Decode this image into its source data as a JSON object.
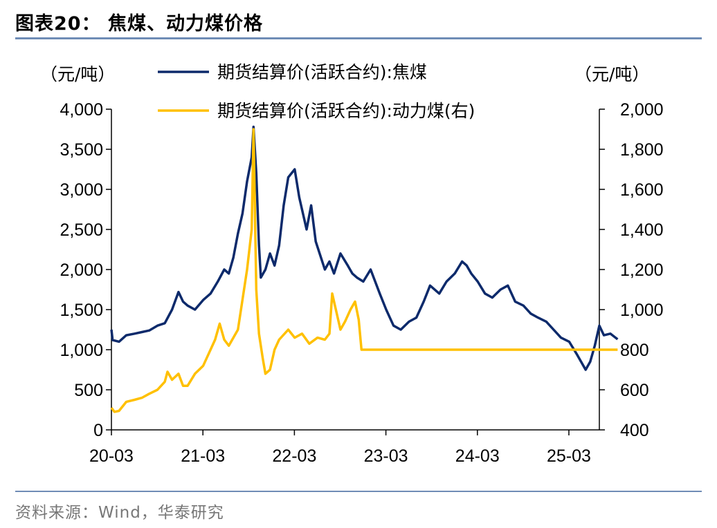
{
  "header": {
    "title": "图表20：  焦煤、动力煤价格"
  },
  "footer": {
    "source": "资料来源：Wind，华泰研究"
  },
  "axes": {
    "left_unit": "（元/吨）",
    "right_unit": "（元/吨）"
  },
  "colors": {
    "coking": "#0d2a6b",
    "thermal": "#ffc000",
    "axis": "#000000",
    "rule": "#6f8cb6"
  },
  "chart_data": {
    "type": "line",
    "title": "焦煤、动力煤价格",
    "x_domain": [
      2020.167,
      2025.5
    ],
    "x_ticks": [
      {
        "t": 2020.167,
        "label": "20-03"
      },
      {
        "t": 2021.167,
        "label": "21-03"
      },
      {
        "t": 2022.167,
        "label": "22-03"
      },
      {
        "t": 2023.167,
        "label": "23-03"
      },
      {
        "t": 2024.167,
        "label": "24-03"
      },
      {
        "t": 2025.167,
        "label": "25-03"
      }
    ],
    "y_left": {
      "min": 0,
      "max": 4000,
      "ticks": [
        0,
        500,
        1000,
        1500,
        2000,
        2500,
        3000,
        3500,
        4000
      ],
      "tick_labels": [
        "0",
        "500",
        "1,000",
        "1,500",
        "2,000",
        "2,500",
        "3,000",
        "3,500",
        "4,000"
      ]
    },
    "y_right": {
      "min": 400,
      "max": 2000,
      "ticks": [
        400,
        600,
        800,
        1000,
        1200,
        1400,
        1600,
        1800,
        2000
      ],
      "tick_labels": [
        "400",
        "600",
        "800",
        "1,000",
        "1,200",
        "1,400",
        "1,600",
        "1,800",
        "2,000"
      ]
    },
    "series": [
      {
        "name": "期货结算价(活跃合约):焦煤",
        "axis": "left",
        "color": "#0d2a6b",
        "points": [
          [
            2020.167,
            1250
          ],
          [
            2020.18,
            1120
          ],
          [
            2020.25,
            1100
          ],
          [
            2020.33,
            1180
          ],
          [
            2020.42,
            1200
          ],
          [
            2020.5,
            1220
          ],
          [
            2020.58,
            1240
          ],
          [
            2020.67,
            1300
          ],
          [
            2020.75,
            1330
          ],
          [
            2020.83,
            1500
          ],
          [
            2020.9,
            1720
          ],
          [
            2020.95,
            1600
          ],
          [
            2021.0,
            1550
          ],
          [
            2021.08,
            1500
          ],
          [
            2021.17,
            1620
          ],
          [
            2021.25,
            1700
          ],
          [
            2021.33,
            1850
          ],
          [
            2021.4,
            2000
          ],
          [
            2021.45,
            1950
          ],
          [
            2021.5,
            2150
          ],
          [
            2021.55,
            2450
          ],
          [
            2021.6,
            2700
          ],
          [
            2021.65,
            3100
          ],
          [
            2021.7,
            3400
          ],
          [
            2021.72,
            3780
          ],
          [
            2021.75,
            3200
          ],
          [
            2021.78,
            2300
          ],
          [
            2021.8,
            1900
          ],
          [
            2021.85,
            2000
          ],
          [
            2021.9,
            2200
          ],
          [
            2021.95,
            2050
          ],
          [
            2022.0,
            2300
          ],
          [
            2022.05,
            2800
          ],
          [
            2022.1,
            3150
          ],
          [
            2022.17,
            3250
          ],
          [
            2022.22,
            2900
          ],
          [
            2022.3,
            2500
          ],
          [
            2022.35,
            2800
          ],
          [
            2022.4,
            2350
          ],
          [
            2022.5,
            2000
          ],
          [
            2022.55,
            2100
          ],
          [
            2022.6,
            1950
          ],
          [
            2022.67,
            2200
          ],
          [
            2022.75,
            2050
          ],
          [
            2022.8,
            1950
          ],
          [
            2022.85,
            1900
          ],
          [
            2022.92,
            1850
          ],
          [
            2023.0,
            2000
          ],
          [
            2023.05,
            1850
          ],
          [
            2023.1,
            1700
          ],
          [
            2023.17,
            1500
          ],
          [
            2023.25,
            1300
          ],
          [
            2023.33,
            1250
          ],
          [
            2023.42,
            1350
          ],
          [
            2023.5,
            1400
          ],
          [
            2023.58,
            1600
          ],
          [
            2023.65,
            1800
          ],
          [
            2023.75,
            1700
          ],
          [
            2023.83,
            1850
          ],
          [
            2023.92,
            1950
          ],
          [
            2024.0,
            2100
          ],
          [
            2024.05,
            2050
          ],
          [
            2024.1,
            1950
          ],
          [
            2024.17,
            1850
          ],
          [
            2024.25,
            1700
          ],
          [
            2024.33,
            1650
          ],
          [
            2024.42,
            1750
          ],
          [
            2024.5,
            1800
          ],
          [
            2024.58,
            1600
          ],
          [
            2024.67,
            1550
          ],
          [
            2024.75,
            1450
          ],
          [
            2024.83,
            1400
          ],
          [
            2024.92,
            1350
          ],
          [
            2025.0,
            1250
          ],
          [
            2025.08,
            1150
          ],
          [
            2025.17,
            1100
          ],
          [
            2025.25,
            950
          ],
          [
            2025.3,
            850
          ],
          [
            2025.35,
            750
          ],
          [
            2025.4,
            850
          ],
          [
            2025.45,
            1050
          ],
          [
            2025.5,
            1300
          ],
          [
            2025.55,
            1180
          ],
          [
            2025.62,
            1200
          ],
          [
            2025.7,
            1130
          ]
        ]
      },
      {
        "name": "期货结算价(活跃合约):动力煤(右)",
        "axis": "right",
        "color": "#ffc000",
        "points": [
          [
            2020.167,
            510
          ],
          [
            2020.2,
            490
          ],
          [
            2020.25,
            495
          ],
          [
            2020.33,
            540
          ],
          [
            2020.42,
            550
          ],
          [
            2020.5,
            560
          ],
          [
            2020.58,
            580
          ],
          [
            2020.67,
            600
          ],
          [
            2020.75,
            640
          ],
          [
            2020.78,
            690
          ],
          [
            2020.83,
            650
          ],
          [
            2020.9,
            680
          ],
          [
            2020.95,
            620
          ],
          [
            2021.0,
            620
          ],
          [
            2021.08,
            680
          ],
          [
            2021.17,
            720
          ],
          [
            2021.25,
            800
          ],
          [
            2021.3,
            850
          ],
          [
            2021.35,
            930
          ],
          [
            2021.4,
            850
          ],
          [
            2021.45,
            820
          ],
          [
            2021.5,
            860
          ],
          [
            2021.55,
            900
          ],
          [
            2021.6,
            1050
          ],
          [
            2021.65,
            1200
          ],
          [
            2021.7,
            1400
          ],
          [
            2021.72,
            1900
          ],
          [
            2021.75,
            1100
          ],
          [
            2021.78,
            880
          ],
          [
            2021.82,
            760
          ],
          [
            2021.85,
            680
          ],
          [
            2021.9,
            700
          ],
          [
            2021.95,
            800
          ],
          [
            2022.0,
            850
          ],
          [
            2022.1,
            900
          ],
          [
            2022.17,
            860
          ],
          [
            2022.25,
            880
          ],
          [
            2022.33,
            830
          ],
          [
            2022.42,
            860
          ],
          [
            2022.5,
            850
          ],
          [
            2022.55,
            880
          ],
          [
            2022.58,
            1080
          ],
          [
            2022.62,
            1000
          ],
          [
            2022.67,
            900
          ],
          [
            2022.72,
            940
          ],
          [
            2022.78,
            1000
          ],
          [
            2022.83,
            1040
          ],
          [
            2022.87,
            950
          ],
          [
            2022.9,
            800
          ],
          [
            2023.167,
            800
          ],
          [
            2024.167,
            800
          ],
          [
            2025.167,
            800
          ],
          [
            2025.7,
            800
          ]
        ]
      }
    ]
  }
}
